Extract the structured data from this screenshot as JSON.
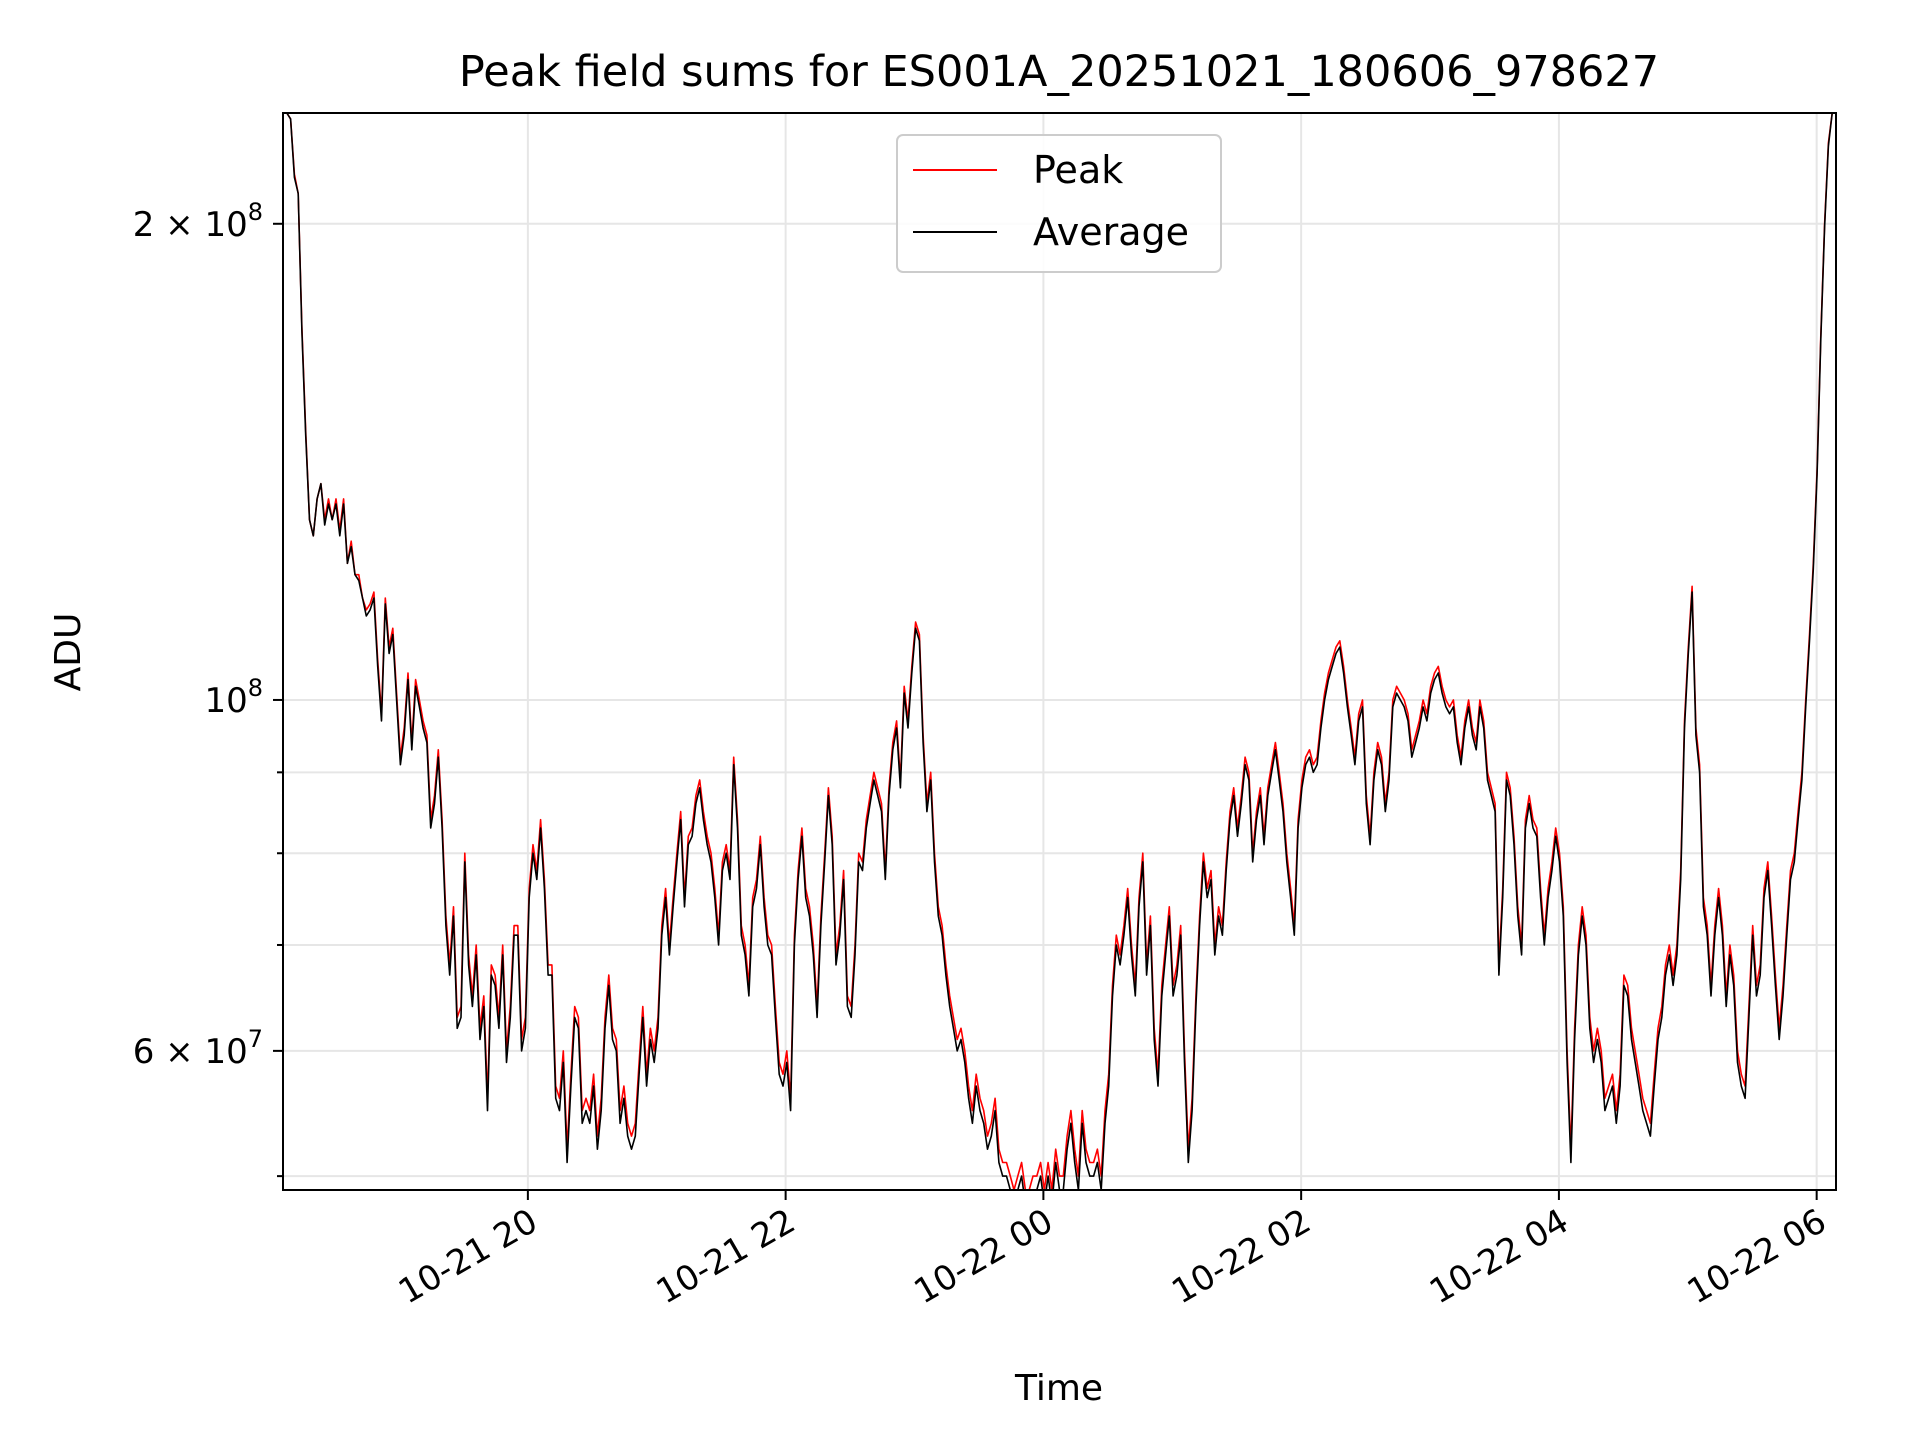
{
  "chart_data": {
    "type": "line",
    "title": "Peak field sums for ES001A_20251021_180606_978627",
    "xlabel": "Time",
    "ylabel": "ADU",
    "yscale": "log",
    "grid": true,
    "legend_position": "upper center",
    "x_start_hour": 18.1,
    "x_end_hour": 30.15,
    "x_range_hours": [
      18.1,
      30.15
    ],
    "ylim": [
      49000000,
      235000000
    ],
    "x_ticks": [
      {
        "hour": 20,
        "label": "10-21 20"
      },
      {
        "hour": 22,
        "label": "10-21 22"
      },
      {
        "hour": 24,
        "label": "10-22 00"
      },
      {
        "hour": 26,
        "label": "10-22 02"
      },
      {
        "hour": 28,
        "label": "10-22 04"
      },
      {
        "hour": 30,
        "label": "10-22 06"
      }
    ],
    "y_major_ticks": [
      {
        "value": 60000000,
        "mantissa": "6",
        "exp": "7"
      },
      {
        "value": 100000000,
        "mantissa": "",
        "exp": "8"
      },
      {
        "value": 200000000,
        "mantissa": "2",
        "exp": "8"
      }
    ],
    "y_minor_ticks": [
      50000000,
      70000000,
      80000000,
      90000000
    ],
    "times_label_sep": "× 10",
    "series": [
      {
        "name": "Peak",
        "color": "#ff0000",
        "values_millions": [
          235,
          235,
          233,
          215,
          209,
          172,
          148,
          130,
          127,
          134,
          137,
          130,
          134,
          130,
          134,
          128,
          134,
          122,
          126,
          120,
          120,
          116,
          114,
          115,
          117,
          106,
          98,
          116,
          108,
          111,
          101,
          92,
          96,
          104,
          94,
          103,
          100,
          97,
          95,
          84,
          87,
          93,
          84,
          73,
          68,
          74,
          63,
          64,
          80,
          69,
          65,
          70,
          62,
          65,
          56,
          68,
          67,
          63,
          70,
          60,
          64,
          72,
          72,
          61,
          63,
          76,
          81,
          78,
          84,
          77,
          68,
          68,
          57,
          56,
          60,
          52,
          58,
          64,
          63,
          55,
          56,
          55,
          58,
          53,
          56,
          63,
          67,
          62,
          61,
          55,
          57,
          54,
          53,
          54,
          59,
          64,
          58,
          62,
          60,
          63,
          72,
          76,
          70,
          75,
          80,
          85,
          75,
          82,
          83,
          87,
          89,
          85,
          82,
          80,
          76,
          71,
          79,
          81,
          78,
          92,
          84,
          72,
          70,
          66,
          75,
          77,
          82,
          75,
          71,
          70,
          64,
          59,
          58,
          60,
          56,
          71,
          78,
          83,
          76,
          74,
          70,
          64,
          73,
          80,
          88,
          82,
          69,
          72,
          78,
          65,
          64,
          70,
          80,
          79,
          84,
          87,
          90,
          88,
          86,
          78,
          88,
          94,
          97,
          89,
          102,
          97,
          105,
          112,
          110,
          95,
          86,
          90,
          80,
          74,
          72,
          68,
          65,
          63,
          61,
          62,
          60,
          57,
          55,
          58,
          56,
          55,
          53,
          54,
          56,
          52,
          51,
          51,
          50,
          49,
          50,
          51,
          49,
          49,
          50,
          50,
          51,
          49,
          51,
          49,
          52,
          50,
          50,
          53,
          55,
          52,
          50,
          55,
          52,
          51,
          51,
          52,
          50,
          55,
          58,
          66,
          71,
          69,
          72,
          76,
          70,
          66,
          75,
          80,
          68,
          73,
          62,
          58,
          66,
          70,
          74,
          66,
          68,
          72,
          60,
          52,
          56,
          65,
          73,
          80,
          76,
          78,
          70,
          74,
          72,
          79,
          85,
          88,
          83,
          87,
          92,
          90,
          80,
          85,
          88,
          82,
          88,
          91,
          94,
          90,
          86,
          80,
          76,
          72,
          84,
          89,
          92,
          93,
          91,
          92,
          97,
          101,
          104,
          106,
          108,
          109,
          105,
          100,
          96,
          92,
          98,
          100,
          87,
          82,
          90,
          94,
          92,
          86,
          90,
          100,
          102,
          101,
          100,
          98,
          93,
          95,
          97,
          100,
          98,
          102,
          104,
          105,
          102,
          100,
          99,
          100,
          95,
          92,
          97,
          100,
          96,
          94,
          100,
          97,
          90,
          88,
          86,
          68,
          76,
          90,
          88,
          82,
          74,
          70,
          84,
          87,
          84,
          83,
          76,
          71,
          76,
          79,
          83,
          80,
          74,
          60,
          52,
          62,
          70,
          74,
          71,
          63,
          60,
          62,
          60,
          56,
          57,
          58,
          55,
          58,
          67,
          66,
          62,
          60,
          58,
          56,
          55,
          54,
          58,
          62,
          64,
          68,
          70,
          67,
          70,
          78,
          97,
          108,
          118,
          96,
          91,
          75,
          72,
          66,
          72,
          76,
          72,
          65,
          70,
          67,
          60,
          58,
          57,
          64,
          72,
          66,
          68,
          76,
          79,
          73,
          67,
          62,
          66,
          72,
          78,
          80,
          85,
          90,
          100,
          110,
          122,
          140,
          170,
          200,
          225,
          235,
          235
        ]
      },
      {
        "name": "Average",
        "color": "#000000",
        "values_millions": [
          235,
          235,
          233,
          214,
          209,
          171,
          147,
          130,
          127,
          134,
          137,
          129,
          133,
          130,
          133,
          127,
          133,
          122,
          125,
          120,
          119,
          116,
          113,
          114,
          116,
          105,
          97,
          115,
          107,
          110,
          100,
          91,
          95,
          103,
          93,
          102,
          99,
          96,
          94,
          83,
          86,
          92,
          83,
          72,
          67,
          73,
          62,
          63,
          79,
          68,
          64,
          69,
          61,
          64,
          55,
          67,
          66,
          62,
          69,
          59,
          63,
          71,
          71,
          60,
          62,
          75,
          80,
          77,
          83,
          76,
          67,
          67,
          56,
          55,
          59,
          51,
          57,
          63,
          62,
          54,
          55,
          54,
          57,
          52,
          55,
          62,
          66,
          61,
          60,
          54,
          56,
          53,
          52,
          53,
          58,
          63,
          57,
          61,
          59,
          62,
          71,
          75,
          69,
          74,
          79,
          84,
          74,
          81,
          82,
          86,
          88,
          84,
          81,
          79,
          75,
          70,
          78,
          80,
          77,
          91,
          83,
          71,
          69,
          65,
          74,
          76,
          81,
          74,
          70,
          69,
          63,
          58,
          57,
          59,
          55,
          70,
          77,
          82,
          75,
          73,
          69,
          63,
          72,
          79,
          87,
          81,
          68,
          71,
          77,
          64,
          63,
          69,
          79,
          78,
          83,
          86,
          89,
          87,
          85,
          77,
          87,
          93,
          96,
          88,
          101,
          96,
          104,
          111,
          109,
          94,
          85,
          89,
          79,
          73,
          71,
          67,
          64,
          62,
          60,
          61,
          59,
          56,
          54,
          57,
          55,
          54,
          52,
          53,
          55,
          51,
          50,
          50,
          49,
          48,
          49,
          50,
          48,
          48,
          49,
          49,
          50,
          48,
          50,
          48,
          51,
          49,
          49,
          52,
          54,
          51,
          49,
          54,
          51,
          50,
          50,
          51,
          49,
          54,
          57,
          65,
          70,
          68,
          71,
          75,
          69,
          65,
          74,
          79,
          67,
          72,
          61,
          57,
          65,
          69,
          73,
          65,
          67,
          71,
          59,
          51,
          55,
          64,
          72,
          79,
          75,
          77,
          69,
          73,
          71,
          78,
          84,
          87,
          82,
          86,
          91,
          89,
          79,
          84,
          87,
          81,
          87,
          90,
          93,
          89,
          85,
          79,
          75,
          71,
          83,
          88,
          91,
          92,
          90,
          91,
          96,
          100,
          103,
          105,
          107,
          108,
          104,
          99,
          95,
          91,
          97,
          99,
          86,
          81,
          89,
          93,
          91,
          85,
          89,
          99,
          101,
          100,
          99,
          97,
          92,
          94,
          96,
          99,
          97,
          101,
          103,
          104,
          101,
          99,
          98,
          99,
          94,
          91,
          96,
          99,
          95,
          93,
          99,
          96,
          89,
          87,
          85,
          67,
          75,
          89,
          87,
          81,
          73,
          69,
          83,
          86,
          83,
          82,
          75,
          70,
          75,
          78,
          82,
          79,
          73,
          59,
          51,
          61,
          69,
          73,
          70,
          62,
          59,
          61,
          59,
          55,
          56,
          57,
          54,
          57,
          66,
          65,
          61,
          59,
          57,
          55,
          54,
          53,
          57,
          61,
          63,
          67,
          69,
          66,
          69,
          77,
          96,
          107,
          117,
          95,
          90,
          74,
          71,
          65,
          71,
          75,
          71,
          64,
          69,
          66,
          59,
          57,
          56,
          63,
          71,
          65,
          67,
          75,
          78,
          72,
          66,
          61,
          65,
          71,
          77,
          79,
          84,
          89,
          99,
          109,
          121,
          139,
          169,
          199,
          224,
          235,
          235
        ]
      }
    ]
  }
}
